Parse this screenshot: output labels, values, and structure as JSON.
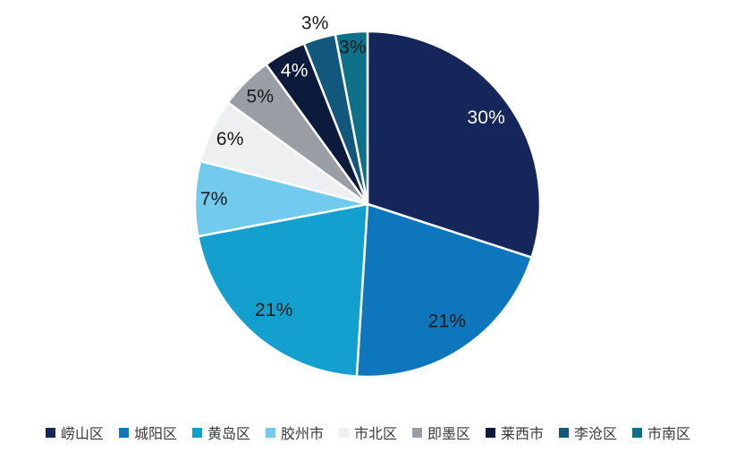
{
  "chart_data": {
    "type": "pie",
    "title": "",
    "unit": "%",
    "start_angle_deg": 0,
    "direction": "clockwise",
    "legend_position": "bottom",
    "slice_border_color": "#ffffff",
    "label_text_dark": "#1a1a1a",
    "label_text_light": "#ffffff",
    "slices": [
      {
        "label": "崂山区",
        "value": 30,
        "display": "30%",
        "color": "#15265b",
        "label_color": "#ffffff",
        "label_radius": 0.85
      },
      {
        "label": "城阳区",
        "value": 21,
        "display": "21%",
        "color": "#0e76bc",
        "label_color": "#1a1a1a",
        "label_radius": 0.82
      },
      {
        "label": "黄岛区",
        "value": 21,
        "display": "21%",
        "color": "#14a0ce",
        "label_color": "#1a1a1a",
        "label_radius": 0.82
      },
      {
        "label": "胶州市",
        "value": 7,
        "display": "7%",
        "color": "#72cbee",
        "label_color": "#1a1a1a",
        "label_radius": 0.89
      },
      {
        "label": "市北区",
        "value": 6,
        "display": "6%",
        "color": "#edeff0",
        "label_color": "#1a1a1a",
        "label_radius": 0.88
      },
      {
        "label": "即墨区",
        "value": 5,
        "display": "5%",
        "color": "#999ea4",
        "label_color": "#1a1a1a",
        "label_radius": 0.88
      },
      {
        "label": "莱西市",
        "value": 4,
        "display": "4%",
        "color": "#0c1b3c",
        "label_color": "#ffffff",
        "label_radius": 0.88
      },
      {
        "label": "李沧区",
        "value": 3,
        "display": "3%",
        "color": "#12587c",
        "label_color": "#1a1a1a",
        "label_radius": 1.09
      },
      {
        "label": "市南区",
        "value": 3,
        "display": "3%",
        "color": "#0f7089",
        "label_color": "#1a1a1a",
        "label_radius": 0.91
      }
    ]
  }
}
